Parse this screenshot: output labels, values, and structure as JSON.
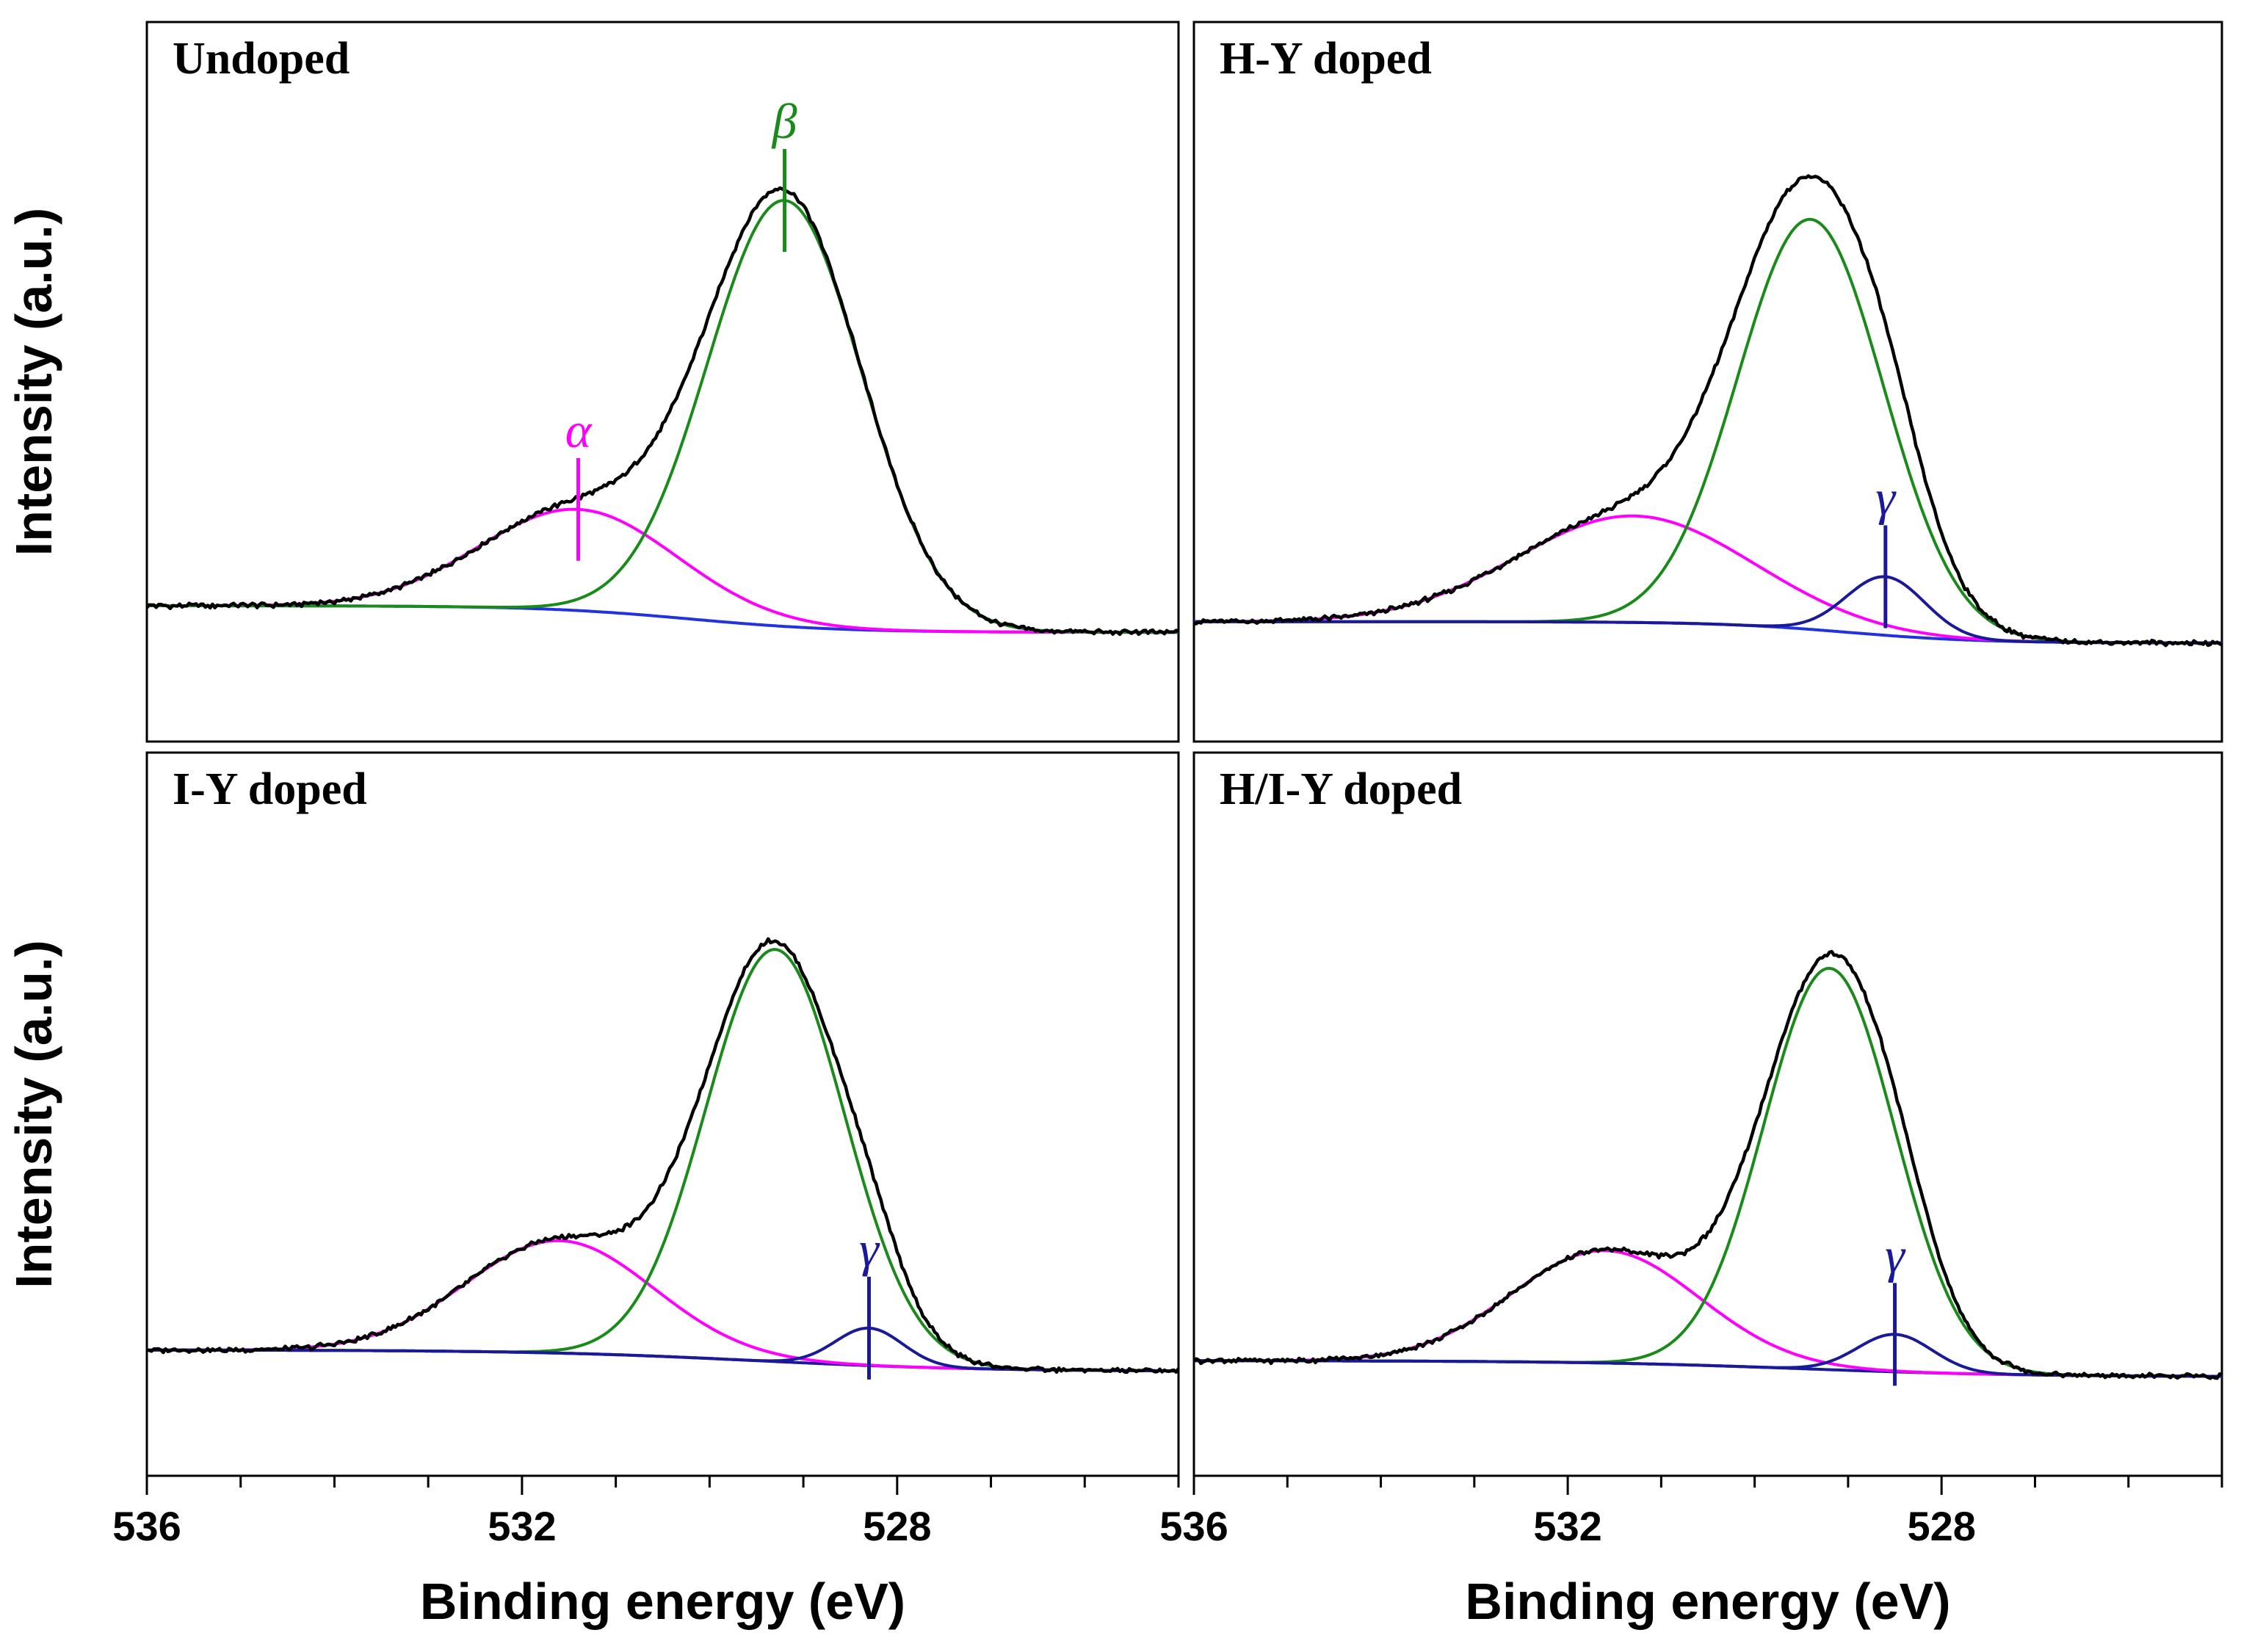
{
  "chart_data": [
    {
      "type": "line",
      "panel": "top-left",
      "title": "Undoped",
      "xlabel": "",
      "ylabel": "Intensity (a.u.)",
      "xlim": [
        536,
        525
      ],
      "ylim": [
        0,
        1
      ],
      "xticks": [],
      "series": [
        {
          "name": "baseline",
          "color": "#2233dd",
          "kind": "baseline",
          "y_high": 0.12,
          "y_low": 0.07,
          "center": 530.2,
          "width": 0.8
        },
        {
          "name": "alpha",
          "color": "#ff00ff",
          "kind": "peak",
          "center": 531.4,
          "sigma": 1.05,
          "amplitude": 0.19
        },
        {
          "name": "beta",
          "color": "#1a8a1a",
          "kind": "peak",
          "center": 529.2,
          "sigma": 0.82,
          "amplitude": 0.8
        },
        {
          "name": "measured",
          "color": "#000000",
          "kind": "envelope"
        }
      ],
      "annotations": [
        {
          "symbol": "α",
          "energy": 531.4,
          "color": "#ff00ff"
        },
        {
          "symbol": "β",
          "energy": 529.2,
          "color": "#1a8a1a"
        }
      ]
    },
    {
      "type": "line",
      "panel": "top-right",
      "title": "H-Y doped",
      "xlabel": "",
      "ylabel": "",
      "xlim": [
        536,
        525
      ],
      "ylim": [
        0,
        1
      ],
      "xticks": [],
      "series": [
        {
          "name": "baseline",
          "color": "#2233dd",
          "kind": "baseline",
          "y_high": 0.09,
          "y_low": 0.05,
          "center": 529.0,
          "width": 0.7
        },
        {
          "name": "alpha",
          "color": "#ff00ff",
          "kind": "peak",
          "center": 531.3,
          "sigma": 1.25,
          "amplitude": 0.2
        },
        {
          "name": "beta",
          "color": "#1a8a1a",
          "kind": "peak",
          "center": 529.4,
          "sigma": 0.78,
          "amplitude": 0.77
        },
        {
          "name": "gamma",
          "color": "#1a1a99",
          "kind": "peak",
          "center": 528.6,
          "sigma": 0.42,
          "amplitude": 0.11
        },
        {
          "name": "measured",
          "color": "#000000",
          "kind": "envelope"
        }
      ],
      "annotations": [
        {
          "symbol": "γ",
          "energy": 528.6,
          "color": "#1a1a99"
        }
      ]
    },
    {
      "type": "line",
      "panel": "bottom-left",
      "title": "I-Y doped",
      "xlabel": "Binding energy (eV)",
      "ylabel": "Intensity (a.u.)",
      "xlim": [
        536,
        525
      ],
      "ylim": [
        0,
        1
      ],
      "xticks": [
        536,
        532,
        528
      ],
      "series": [
        {
          "name": "baseline",
          "color": "#1a1a99",
          "kind": "baseline",
          "y_high": 0.1,
          "y_low": 0.06,
          "center": 529.5,
          "width": 1.2
        },
        {
          "name": "alpha",
          "color": "#ff00ff",
          "kind": "peak",
          "center": 531.6,
          "sigma": 1.0,
          "amplitude": 0.21
        },
        {
          "name": "beta",
          "color": "#1a8a1a",
          "kind": "peak",
          "center": 529.3,
          "sigma": 0.74,
          "amplitude": 0.77
        },
        {
          "name": "gamma",
          "color": "#1a1a99",
          "kind": "peak",
          "center": 528.3,
          "sigma": 0.36,
          "amplitude": 0.07
        },
        {
          "name": "measured",
          "color": "#000000",
          "kind": "envelope"
        }
      ],
      "annotations": [
        {
          "symbol": "γ",
          "energy": 528.3,
          "color": "#1a1a99"
        }
      ]
    },
    {
      "type": "line",
      "panel": "bottom-right",
      "title": "H/I-Y doped",
      "xlabel": "Binding energy (eV)",
      "ylabel": "",
      "xlim": [
        536,
        525
      ],
      "ylim": [
        0,
        1
      ],
      "xticks": [
        536,
        532,
        528
      ],
      "series": [
        {
          "name": "baseline",
          "color": "#1a1a99",
          "kind": "baseline",
          "y_high": 0.08,
          "y_low": 0.05,
          "center": 529.5,
          "width": 1.2
        },
        {
          "name": "alpha",
          "color": "#ff00ff",
          "kind": "peak",
          "center": 531.6,
          "sigma": 1.0,
          "amplitude": 0.21
        },
        {
          "name": "beta",
          "color": "#1a8a1a",
          "kind": "peak",
          "center": 529.2,
          "sigma": 0.7,
          "amplitude": 0.75
        },
        {
          "name": "gamma",
          "color": "#1a1a99",
          "kind": "peak",
          "center": 528.5,
          "sigma": 0.4,
          "amplitude": 0.07
        },
        {
          "name": "measured",
          "color": "#000000",
          "kind": "envelope"
        }
      ],
      "annotations": [
        {
          "symbol": "γ",
          "energy": 528.5,
          "color": "#1a1a99"
        }
      ]
    }
  ]
}
